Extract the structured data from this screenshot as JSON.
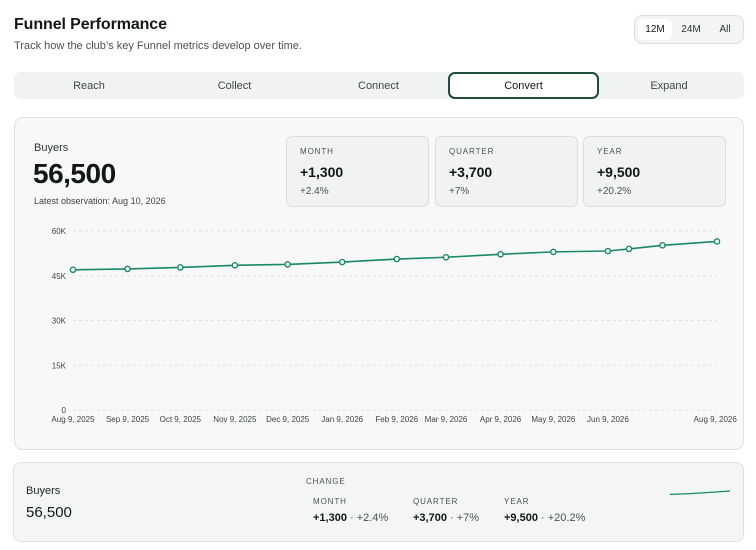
{
  "header": {
    "title": "Funnel Performance",
    "subtitle": "Track how the club’s key Funnel metrics develop over time."
  },
  "range_toggle": {
    "options": [
      "12M",
      "24M",
      "All"
    ],
    "selected": "12M"
  },
  "stage_tabs": {
    "items": [
      "Reach",
      "Collect",
      "Connect",
      "Convert",
      "Expand"
    ],
    "active": "Convert"
  },
  "metric": {
    "label": "Buyers",
    "value": "56,500",
    "note": "Latest observation: Aug 10, 2026"
  },
  "stats": [
    {
      "label": "MONTH",
      "value": "+1,300",
      "pct": "+2.4%"
    },
    {
      "label": "QUARTER",
      "value": "+3,700",
      "pct": "+7%"
    },
    {
      "label": "YEAR",
      "value": "+9,500",
      "pct": "+20.2%"
    }
  ],
  "chart_data": {
    "type": "line",
    "title": "",
    "xlabel": "",
    "ylabel": "",
    "ylim": [
      0,
      60000
    ],
    "yticks": [
      0,
      15000,
      30000,
      45000,
      60000
    ],
    "ytick_labels": [
      "0",
      "15K",
      "30K",
      "45K",
      "60K"
    ],
    "xtick_labels": [
      "Aug 9, 2025",
      "Sep 9, 2025",
      "Oct 9, 2025",
      "Nov 9, 2025",
      "Dec 9, 2025",
      "Jan 9, 2026",
      "Feb 9, 2026",
      "Mar 9, 2026",
      "Apr 9, 2026",
      "May 9, 2026",
      "Jun 9, 2026",
      "Aug 9, 2026"
    ],
    "grid": true,
    "color": "#178a5e",
    "series": [
      {
        "x": [
          "2025-08-09",
          "2025-09-09",
          "2025-10-09",
          "2025-11-09",
          "2025-12-09",
          "2026-01-09",
          "2026-02-09",
          "2026-03-09",
          "2026-04-09",
          "2026-05-09",
          "2026-06-09",
          "2026-06-21",
          "2026-07-10",
          "2026-08-10"
        ],
        "y": [
          47000,
          47300,
          47800,
          48500,
          48800,
          49600,
          50600,
          51200,
          52200,
          53000,
          53300,
          54000,
          55200,
          56500
        ]
      }
    ]
  },
  "summary": {
    "label": "Buyers",
    "value": "56,500",
    "change_heading": "CHANGE",
    "changes": [
      {
        "label": "MONTH",
        "value": "+1,300",
        "pct": "· +2.4%"
      },
      {
        "label": "QUARTER",
        "value": "+3,700",
        "pct": "· +7%"
      },
      {
        "label": "YEAR",
        "value": "+9,500",
        "pct": "· +20.2%"
      }
    ],
    "spark_values": [
      53300,
      54000,
      55200,
      56500
    ]
  }
}
